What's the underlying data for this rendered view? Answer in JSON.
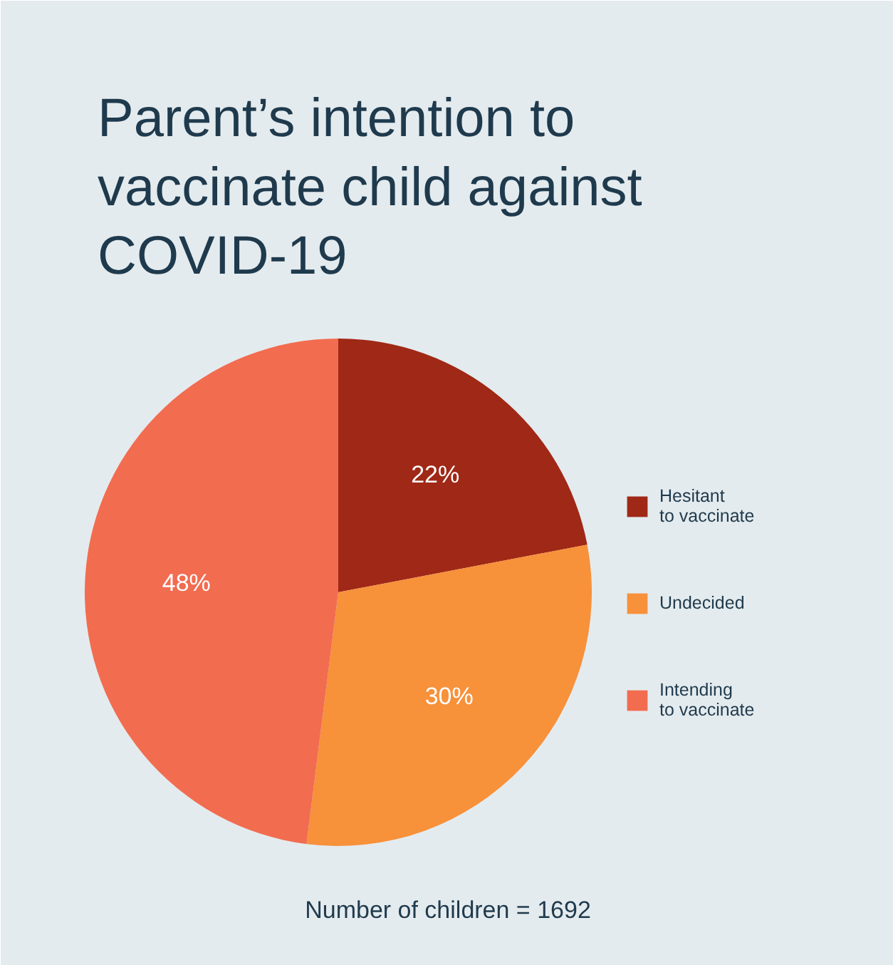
{
  "chart_data": {
    "type": "pie",
    "title": "Parent’s intention to vaccinate child against COVID-19",
    "categories": [
      "Hesitant to vaccinate",
      "Undecided",
      "Intending to vaccinate"
    ],
    "values": [
      22,
      30,
      48
    ],
    "colors": [
      "#a02816",
      "#f7913a",
      "#f26c50"
    ],
    "value_labels": [
      "22%",
      "30%",
      "48%"
    ],
    "legend": "right",
    "annotations": [
      "Number of children = 1692"
    ]
  }
}
